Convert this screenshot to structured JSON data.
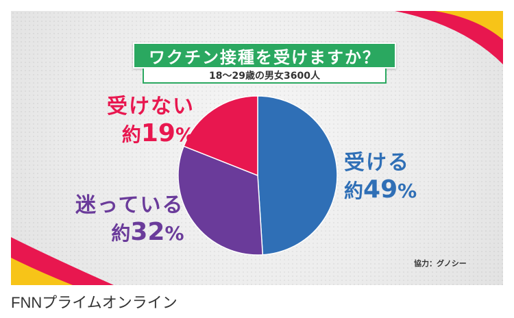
{
  "title": "ワクチン接種を受けますか？",
  "subtitle": "18〜29歳の男女3600人",
  "credit": "協力：グノシー",
  "source": "FNNプライムオンライン",
  "colors": {
    "receive": "#2f6fb6",
    "undecided": "#6a3b9a",
    "not_receive": "#e8174f",
    "title_bg": "#2aa860"
  },
  "labels": [
    {
      "name": "受ける",
      "prefix": "約",
      "value": "49",
      "unit": "%"
    },
    {
      "name": "迷っている",
      "prefix": "約",
      "value": "32",
      "unit": "%"
    },
    {
      "name": "受けない",
      "prefix": "約",
      "value": "19",
      "unit": "%"
    }
  ],
  "chart_data": {
    "type": "pie",
    "title": "ワクチン接種を受けますか？",
    "subtitle": "18〜29歳の男女3600人",
    "categories": [
      "受ける",
      "迷っている",
      "受けない"
    ],
    "values": [
      49,
      32,
      19
    ],
    "unit": "%"
  }
}
